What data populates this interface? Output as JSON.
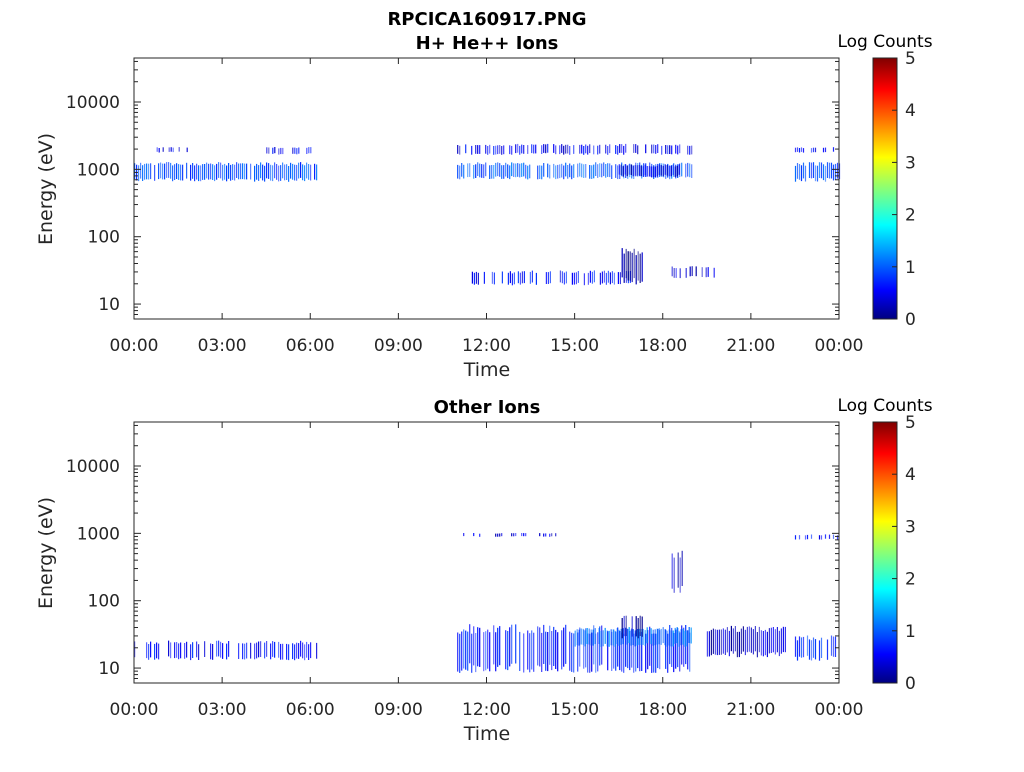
{
  "page_title": "RPCICA160917.PNG",
  "colormap": {
    "stops": [
      "#000080",
      "#0000ff",
      "#00ffff",
      "#ffff00",
      "#ff0000",
      "#800000"
    ]
  },
  "chart_data": [
    {
      "type": "heatmap",
      "title": "H+ He++ Ions",
      "xlabel": "Time",
      "ylabel": "Energy (eV)",
      "x_ticks": [
        "00:00",
        "03:00",
        "06:00",
        "09:00",
        "12:00",
        "15:00",
        "18:00",
        "21:00",
        "00:00"
      ],
      "x_range_hours": [
        0,
        24
      ],
      "y_scale": "log",
      "y_range": [
        6,
        45000
      ],
      "y_ticks": [
        "10",
        "100",
        "1000",
        "10000"
      ],
      "colorbar": {
        "label": "Log Counts",
        "range": [
          0,
          5
        ],
        "ticks": [
          "0",
          "1",
          "2",
          "3",
          "4",
          "5"
        ]
      },
      "bands": [
        {
          "t_start": 0.0,
          "t_end": 6.2,
          "e_low": 700,
          "e_high": 1200,
          "log_counts": 0.9,
          "density": 0.85
        },
        {
          "t_start": 0.7,
          "t_end": 1.8,
          "e_low": 1800,
          "e_high": 2100,
          "log_counts": 0.5,
          "density": 0.5
        },
        {
          "t_start": 4.5,
          "t_end": 6.0,
          "e_low": 1700,
          "e_high": 2100,
          "log_counts": 0.5,
          "density": 0.5
        },
        {
          "t_start": 11.0,
          "t_end": 19.0,
          "e_low": 750,
          "e_high": 1200,
          "log_counts": 1.0,
          "density": 0.9
        },
        {
          "t_start": 11.0,
          "t_end": 19.0,
          "e_low": 1700,
          "e_high": 2300,
          "log_counts": 0.5,
          "density": 0.6
        },
        {
          "t_start": 16.5,
          "t_end": 18.6,
          "e_low": 800,
          "e_high": 1150,
          "log_counts": 0.4,
          "density": 1.0
        },
        {
          "t_start": 11.5,
          "t_end": 17.0,
          "e_low": 20,
          "e_high": 30,
          "log_counts": 0.6,
          "density": 0.5
        },
        {
          "t_start": 16.6,
          "t_end": 17.3,
          "e_low": 22,
          "e_high": 60,
          "log_counts": 0.1,
          "density": 0.95
        },
        {
          "t_start": 18.3,
          "t_end": 20.0,
          "e_low": 25,
          "e_high": 35,
          "log_counts": 0.4,
          "density": 0.5
        },
        {
          "t_start": 22.5,
          "t_end": 24.0,
          "e_low": 700,
          "e_high": 1200,
          "log_counts": 0.9,
          "density": 0.85
        },
        {
          "t_start": 22.5,
          "t_end": 24.0,
          "e_low": 1800,
          "e_high": 2100,
          "log_counts": 0.5,
          "density": 0.5
        }
      ]
    },
    {
      "type": "heatmap",
      "title": "Other Ions",
      "xlabel": "Time",
      "ylabel": "Energy (eV)",
      "x_ticks": [
        "00:00",
        "03:00",
        "06:00",
        "09:00",
        "12:00",
        "15:00",
        "18:00",
        "21:00",
        "00:00"
      ],
      "x_range_hours": [
        0,
        24
      ],
      "y_scale": "log",
      "y_range": [
        6,
        45000
      ],
      "y_ticks": [
        "10",
        "100",
        "1000",
        "10000"
      ],
      "colorbar": {
        "label": "Log Counts",
        "range": [
          0,
          5
        ],
        "ticks": [
          "0",
          "1",
          "2",
          "3",
          "4",
          "5"
        ]
      },
      "bands": [
        {
          "t_start": 0.0,
          "t_end": 6.2,
          "e_low": 14,
          "e_high": 24,
          "log_counts": 0.6,
          "density": 0.6
        },
        {
          "t_start": 11.0,
          "t_end": 19.0,
          "e_low": 10,
          "e_high": 38,
          "log_counts": 0.7,
          "density": 0.85
        },
        {
          "t_start": 15.0,
          "t_end": 19.0,
          "e_low": 22,
          "e_high": 38,
          "log_counts": 1.1,
          "density": 0.95
        },
        {
          "t_start": 16.6,
          "t_end": 17.4,
          "e_low": 30,
          "e_high": 60,
          "log_counts": 0.2,
          "density": 0.8
        },
        {
          "t_start": 19.5,
          "t_end": 22.2,
          "e_low": 16,
          "e_high": 38,
          "log_counts": 0.3,
          "density": 1.0
        },
        {
          "t_start": 22.5,
          "t_end": 24.0,
          "e_low": 14,
          "e_high": 28,
          "log_counts": 0.8,
          "density": 0.7
        },
        {
          "t_start": 11.0,
          "t_end": 14.5,
          "e_low": 900,
          "e_high": 1000,
          "log_counts": 0.4,
          "density": 0.2
        },
        {
          "t_start": 22.5,
          "t_end": 24.0,
          "e_low": 820,
          "e_high": 950,
          "log_counts": 0.6,
          "density": 0.5
        },
        {
          "t_start": 18.3,
          "t_end": 19.0,
          "e_low": 150,
          "e_high": 500,
          "log_counts": 0.3,
          "density": 0.25
        }
      ]
    }
  ]
}
